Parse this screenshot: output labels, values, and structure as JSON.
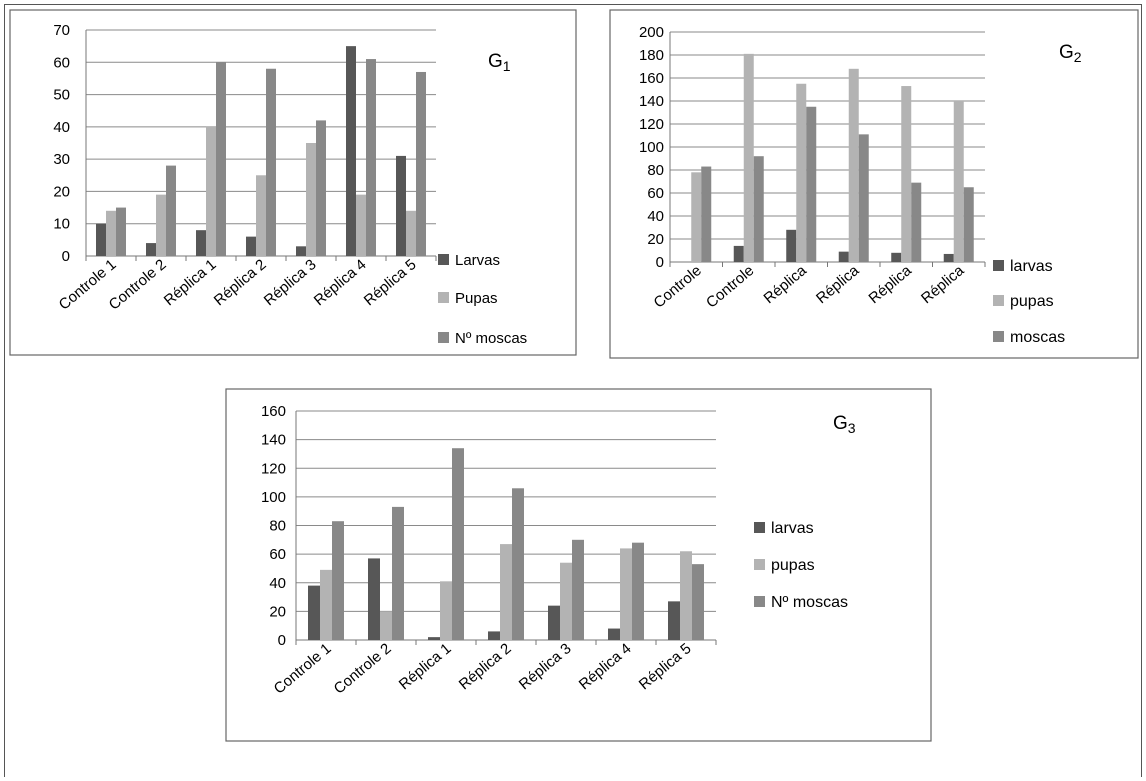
{
  "chart_data": [
    {
      "id": "g1",
      "type": "bar",
      "title": "G",
      "title_sub": "1",
      "categories": [
        "Controle 1",
        "Controle 2",
        "Réplica 1",
        "Réplica 2",
        "Réplica 3",
        "Réplica 4",
        "Réplica 5"
      ],
      "series": [
        {
          "name": "Larvas",
          "color": "#575757",
          "values": [
            10,
            4,
            8,
            6,
            3,
            65,
            31
          ]
        },
        {
          "name": "Pupas",
          "color": "#b3b3b3",
          "values": [
            14,
            19,
            40,
            25,
            35,
            19,
            14
          ]
        },
        {
          "name": "Nº moscas",
          "color": "#888888",
          "values": [
            15,
            28,
            60,
            58,
            42,
            61,
            57
          ]
        }
      ],
      "ylim": [
        0,
        70
      ],
      "yticks": [
        0,
        10,
        20,
        30,
        40,
        50,
        60,
        70
      ],
      "grid": true,
      "legend": "right"
    },
    {
      "id": "g2",
      "type": "bar",
      "title": "G",
      "title_sub": "2",
      "categories": [
        "Controle",
        "Controle",
        "Réplica",
        "Réplica",
        "Réplica",
        "Réplica"
      ],
      "series": [
        {
          "name": "larvas",
          "color": "#575757",
          "values": [
            0,
            14,
            28,
            9,
            8,
            7
          ]
        },
        {
          "name": "pupas",
          "color": "#b3b3b3",
          "values": [
            78,
            181,
            155,
            168,
            153,
            140
          ]
        },
        {
          "name": "moscas",
          "color": "#888888",
          "values": [
            83,
            92,
            135,
            111,
            69,
            65
          ]
        }
      ],
      "ylim": [
        0,
        200
      ],
      "yticks": [
        0,
        20,
        40,
        60,
        80,
        100,
        120,
        140,
        160,
        180,
        200
      ],
      "grid": true,
      "legend": "right"
    },
    {
      "id": "g3",
      "type": "bar",
      "title": "G",
      "title_sub": "3",
      "categories": [
        "Controle 1",
        "Controle 2",
        "Réplica 1",
        "Réplica 2",
        "Réplica 3",
        "Réplica 4",
        "Réplica 5"
      ],
      "series": [
        {
          "name": "larvas",
          "color": "#575757",
          "values": [
            38,
            57,
            2,
            6,
            24,
            8,
            27
          ]
        },
        {
          "name": "pupas",
          "color": "#b3b3b3",
          "values": [
            49,
            20,
            41,
            67,
            54,
            64,
            62
          ]
        },
        {
          "name": "Nº moscas",
          "color": "#888888",
          "values": [
            83,
            93,
            134,
            106,
            70,
            68,
            53
          ]
        }
      ],
      "ylim": [
        0,
        160
      ],
      "yticks": [
        0,
        20,
        40,
        60,
        80,
        100,
        120,
        140,
        160
      ],
      "grid": true,
      "legend": "right"
    }
  ]
}
